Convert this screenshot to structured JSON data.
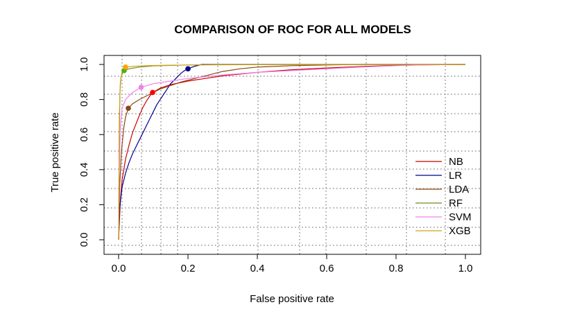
{
  "chart_data": {
    "type": "line",
    "title": "COMPARISON OF ROC FOR ALL MODELS",
    "xlabel": "False positive rate",
    "ylabel": "True positive rate",
    "xlim": [
      0,
      1
    ],
    "ylim": [
      0,
      1
    ],
    "x_ticks": [
      "0.0",
      "0.2",
      "0.4",
      "0.6",
      "0.8",
      "1.0"
    ],
    "y_ticks": [
      "0.0",
      "0.2",
      "0.4",
      "0.6",
      "0.8",
      "1.0"
    ],
    "grid": "dotted, irregular",
    "legend_position": "bottom-right",
    "series": [
      {
        "name": "NB",
        "color": "#cc0000",
        "marker": {
          "x": 0.098,
          "y": 0.84,
          "color": "#ff0000"
        },
        "points": [
          [
            0,
            0
          ],
          [
            0.005,
            0.22
          ],
          [
            0.01,
            0.34
          ],
          [
            0.02,
            0.46
          ],
          [
            0.03,
            0.54
          ],
          [
            0.04,
            0.61
          ],
          [
            0.05,
            0.66
          ],
          [
            0.06,
            0.71
          ],
          [
            0.07,
            0.755
          ],
          [
            0.08,
            0.79
          ],
          [
            0.09,
            0.82
          ],
          [
            0.098,
            0.84
          ],
          [
            0.12,
            0.865
          ],
          [
            0.15,
            0.885
          ],
          [
            0.2,
            0.905
          ],
          [
            0.25,
            0.92
          ],
          [
            0.3,
            0.935
          ],
          [
            0.4,
            0.955
          ],
          [
            0.5,
            0.97
          ],
          [
            0.6,
            0.98
          ],
          [
            0.7,
            0.988
          ],
          [
            0.8,
            0.995
          ],
          [
            0.9,
            0.998
          ],
          [
            1,
            1
          ]
        ]
      },
      {
        "name": "LR",
        "color": "#00008b",
        "marker": {
          "x": 0.2,
          "y": 0.975,
          "color": "#00008b"
        },
        "points": [
          [
            0,
            0
          ],
          [
            0.003,
            0.18
          ],
          [
            0.01,
            0.3
          ],
          [
            0.02,
            0.38
          ],
          [
            0.03,
            0.44
          ],
          [
            0.04,
            0.49
          ],
          [
            0.05,
            0.53
          ],
          [
            0.06,
            0.57
          ],
          [
            0.07,
            0.61
          ],
          [
            0.08,
            0.65
          ],
          [
            0.09,
            0.69
          ],
          [
            0.1,
            0.73
          ],
          [
            0.11,
            0.77
          ],
          [
            0.12,
            0.8
          ],
          [
            0.13,
            0.83
          ],
          [
            0.14,
            0.86
          ],
          [
            0.15,
            0.89
          ],
          [
            0.16,
            0.91
          ],
          [
            0.17,
            0.93
          ],
          [
            0.18,
            0.95
          ],
          [
            0.19,
            0.965
          ],
          [
            0.2,
            0.975
          ],
          [
            0.22,
            0.99
          ],
          [
            0.24,
            1
          ],
          [
            1,
            1
          ]
        ]
      },
      {
        "name": "LDA",
        "color": "#8b4513",
        "marker": {
          "x": 0.028,
          "y": 0.75,
          "color": "#8b4513"
        },
        "points": [
          [
            0,
            0
          ],
          [
            0.003,
            0.3
          ],
          [
            0.008,
            0.5
          ],
          [
            0.015,
            0.64
          ],
          [
            0.02,
            0.7
          ],
          [
            0.028,
            0.75
          ],
          [
            0.04,
            0.775
          ],
          [
            0.06,
            0.8
          ],
          [
            0.08,
            0.82
          ],
          [
            0.1,
            0.84
          ],
          [
            0.12,
            0.86
          ],
          [
            0.15,
            0.88
          ],
          [
            0.18,
            0.9
          ],
          [
            0.22,
            0.92
          ],
          [
            0.26,
            0.94
          ],
          [
            0.3,
            0.96
          ],
          [
            0.35,
            0.975
          ],
          [
            0.4,
            0.985
          ],
          [
            0.5,
            0.993
          ],
          [
            0.6,
            0.997
          ],
          [
            0.7,
            1
          ],
          [
            1,
            1
          ]
        ]
      },
      {
        "name": "RF",
        "color": "#6b8e23",
        "marker": {
          "x": 0.016,
          "y": 0.965,
          "color": "#4caf1d"
        },
        "points": [
          [
            0,
            0
          ],
          [
            0.002,
            0.6
          ],
          [
            0.004,
            0.85
          ],
          [
            0.007,
            0.93
          ],
          [
            0.012,
            0.955
          ],
          [
            0.016,
            0.965
          ],
          [
            0.03,
            0.975
          ],
          [
            0.06,
            0.985
          ],
          [
            0.1,
            0.992
          ],
          [
            0.2,
            0.997
          ],
          [
            0.3,
            1
          ],
          [
            1,
            1
          ]
        ]
      },
      {
        "name": "SVM",
        "color": "#ee82ee",
        "marker": {
          "x": 0.065,
          "y": 0.87,
          "color": "#ee82ee"
        },
        "points": [
          [
            0,
            0
          ],
          [
            0.002,
            0.4
          ],
          [
            0.005,
            0.65
          ],
          [
            0.01,
            0.75
          ],
          [
            0.02,
            0.8
          ],
          [
            0.04,
            0.84
          ],
          [
            0.065,
            0.87
          ],
          [
            0.1,
            0.89
          ],
          [
            0.15,
            0.905
          ],
          [
            0.2,
            0.92
          ],
          [
            0.3,
            0.94
          ],
          [
            0.4,
            0.955
          ],
          [
            0.5,
            0.965
          ],
          [
            0.6,
            0.975
          ],
          [
            0.7,
            0.985
          ],
          [
            0.8,
            0.993
          ],
          [
            0.9,
            0.998
          ],
          [
            1,
            1
          ]
        ]
      },
      {
        "name": "XGB",
        "color": "#d4a017",
        "marker": {
          "x": 0.02,
          "y": 0.985,
          "color": "#ffa500"
        },
        "points": [
          [
            0,
            0
          ],
          [
            0.002,
            0.7
          ],
          [
            0.005,
            0.9
          ],
          [
            0.01,
            0.96
          ],
          [
            0.015,
            0.978
          ],
          [
            0.02,
            0.985
          ],
          [
            0.05,
            0.99
          ],
          [
            0.1,
            0.994
          ],
          [
            0.2,
            0.997
          ],
          [
            0.4,
            0.999
          ],
          [
            1,
            1
          ]
        ]
      }
    ]
  }
}
